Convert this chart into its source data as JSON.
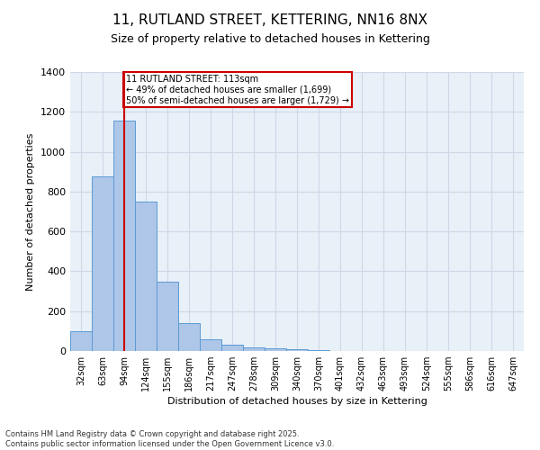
{
  "title": "11, RUTLAND STREET, KETTERING, NN16 8NX",
  "subtitle": "Size of property relative to detached houses in Kettering",
  "xlabel": "Distribution of detached houses by size in Kettering",
  "ylabel": "Number of detached properties",
  "bar_values": [
    100,
    875,
    1155,
    750,
    350,
    140,
    60,
    30,
    20,
    15,
    10,
    5,
    0,
    0,
    0,
    0,
    0,
    0,
    0,
    0,
    0
  ],
  "categories": [
    "32sqm",
    "63sqm",
    "94sqm",
    "124sqm",
    "155sqm",
    "186sqm",
    "217sqm",
    "247sqm",
    "278sqm",
    "309sqm",
    "340sqm",
    "370sqm",
    "401sqm",
    "432sqm",
    "463sqm",
    "493sqm",
    "524sqm",
    "555sqm",
    "586sqm",
    "616sqm",
    "647sqm"
  ],
  "bar_color": "#aec6e8",
  "bar_edge_color": "#5b9bd5",
  "grid_color": "#d0d8e8",
  "background_color": "#e8f0f8",
  "property_line_color": "#cc0000",
  "annotation_text": "11 RUTLAND STREET: 113sqm\n← 49% of detached houses are smaller (1,699)\n50% of semi-detached houses are larger (1,729) →",
  "annotation_box_color": "#cc0000",
  "ylim": [
    0,
    1400
  ],
  "yticks": [
    0,
    200,
    400,
    600,
    800,
    1000,
    1200,
    1400
  ],
  "footer_line1": "Contains HM Land Registry data © Crown copyright and database right 2025.",
  "footer_line2": "Contains public sector information licensed under the Open Government Licence v3.0."
}
